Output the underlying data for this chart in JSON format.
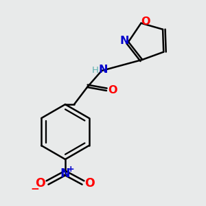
{
  "bg_color": "#e8eaea",
  "bond_color": "#000000",
  "bond_width": 1.8,
  "atom_colors": {
    "C": "#000000",
    "N": "#0000cc",
    "O": "#ff0000",
    "H": "#5aafaf"
  },
  "font_size": 10.5,
  "fig_size": [
    3.0,
    3.0
  ],
  "dpi": 100
}
